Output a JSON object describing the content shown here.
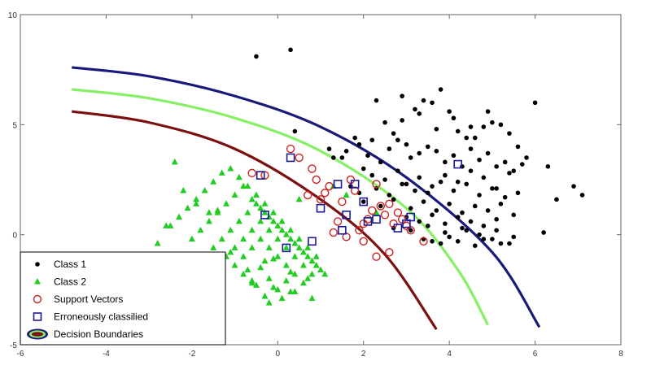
{
  "chart_data": {
    "type": "scatter",
    "title": "",
    "xlabel": "",
    "ylabel": "",
    "xlim": [
      -6,
      8
    ],
    "ylim": [
      -5,
      10
    ],
    "xticks": [
      -6,
      -4,
      -2,
      0,
      2,
      4,
      6,
      8
    ],
    "yticks": [
      -5,
      0,
      5,
      10
    ],
    "grid": false,
    "legend_position": "bottom-left",
    "legend": [
      {
        "label": "Class 1",
        "marker": "dot",
        "color": "#000000"
      },
      {
        "label": "Class 2",
        "marker": "triangle",
        "color": "#22cc22"
      },
      {
        "label": "Support Vectors",
        "marker": "circle-open",
        "color": "#cc2222"
      },
      {
        "label": "Erroneously classilied",
        "marker": "square-open",
        "color": "#1a1a99"
      },
      {
        "label": "Decision Boundaries",
        "marker": "ellipse",
        "color": "#1a1a7a"
      }
    ],
    "boundaries": [
      {
        "color": "#1a1a7a",
        "points": [
          [
            -4.8,
            7.6
          ],
          [
            -3,
            7.2
          ],
          [
            -1,
            6.3
          ],
          [
            1,
            4.9
          ],
          [
            3,
            2.6
          ],
          [
            5,
            -0.8
          ],
          [
            6.1,
            -4.2
          ]
        ]
      },
      {
        "color": "#88ee66",
        "points": [
          [
            -4.8,
            6.6
          ],
          [
            -3,
            6.2
          ],
          [
            -1,
            5.3
          ],
          [
            1,
            3.8
          ],
          [
            3,
            1.2
          ],
          [
            4.2,
            -1.6
          ],
          [
            4.9,
            -4.1
          ]
        ]
      },
      {
        "color": "#7a1010",
        "points": [
          [
            -4.8,
            5.6
          ],
          [
            -3,
            5.1
          ],
          [
            -1,
            3.9
          ],
          [
            1,
            1.6
          ],
          [
            2.5,
            -0.9
          ],
          [
            3.7,
            -4.3
          ]
        ]
      }
    ],
    "series": [
      {
        "name": "Class 1",
        "marker": "dot",
        "color": "#000000",
        "x": [
          -0.5,
          0.3,
          0.4,
          1.2,
          1.5,
          1.9,
          2.2,
          2.3,
          2.5,
          2.7,
          2.9,
          3.0,
          3.2,
          3.4,
          3.6,
          3.8,
          4.0,
          4.2,
          4.4,
          4.6,
          4.8,
          5.0,
          5.2,
          5.4,
          5.6,
          5.8,
          6.0,
          6.3,
          6.5,
          6.9,
          7.1,
          1.3,
          1.6,
          1.8,
          2.0,
          2.1,
          2.4,
          2.6,
          2.8,
          3.1,
          3.3,
          3.5,
          3.7,
          3.9,
          4.1,
          4.3,
          4.5,
          4.7,
          4.9,
          5.1,
          5.3,
          5.5,
          5.7,
          2.2,
          2.5,
          2.8,
          3.0,
          3.3,
          3.6,
          3.9,
          4.2,
          4.5,
          4.8,
          5.1,
          5.4,
          1.7,
          1.9,
          2.3,
          2.6,
          2.9,
          3.2,
          3.5,
          3.8,
          4.1,
          4.4,
          4.7,
          5.0,
          5.3,
          5.6,
          2.0,
          2.4,
          2.7,
          3.1,
          3.4,
          3.7,
          4.0,
          4.3,
          4.6,
          4.9,
          5.2,
          5.5,
          3.0,
          3.3,
          3.6,
          3.9,
          4.2,
          4.5,
          4.8,
          5.1,
          2.7,
          3.1,
          3.5,
          3.9,
          4.3,
          4.7,
          5.1,
          5.5,
          3.4,
          3.8,
          4.2,
          4.6,
          5.0,
          5.4,
          2.9,
          3.3,
          3.7,
          4.1,
          4.5,
          4.9,
          6.2,
          3.6,
          4.0,
          4.4,
          4.8,
          5.2
        ],
        "y": [
          8.1,
          8.4,
          4.7,
          3.9,
          3.5,
          4.1,
          4.3,
          6.1,
          5.1,
          4.6,
          6.3,
          4.1,
          5.7,
          6.1,
          6.0,
          6.6,
          5.6,
          4.7,
          4.4,
          4.4,
          4.9,
          5.1,
          5.0,
          4.6,
          4.0,
          3.5,
          6.0,
          3.1,
          1.6,
          2.2,
          1.8,
          3.5,
          3.8,
          4.4,
          3.0,
          3.6,
          3.3,
          3.9,
          4.3,
          3.5,
          3.7,
          4.0,
          3.8,
          3.3,
          3.6,
          3.1,
          3.9,
          3.4,
          3.7,
          3.1,
          3.3,
          2.9,
          3.2,
          2.7,
          2.5,
          2.9,
          2.3,
          2.6,
          2.2,
          2.7,
          2.4,
          2.9,
          2.6,
          2.1,
          2.8,
          2.2,
          1.9,
          2.1,
          1.8,
          2.3,
          2.0,
          1.9,
          2.4,
          2.0,
          2.3,
          1.8,
          2.1,
          1.7,
          1.9,
          1.5,
          1.3,
          1.6,
          1.2,
          1.5,
          1.1,
          1.4,
          1.0,
          1.3,
          1.1,
          1.4,
          0.9,
          0.8,
          0.6,
          0.9,
          0.5,
          0.8,
          0.6,
          0.4,
          0.7,
          0.3,
          0.2,
          0.4,
          0.1,
          0.3,
          0.0,
          0.2,
          -0.1,
          -0.2,
          -0.4,
          -0.3,
          -0.5,
          -0.2,
          -0.4,
          5.2,
          5.5,
          4.8,
          5.3,
          4.9,
          5.6,
          0.1,
          -0.3,
          -0.1,
          0.2,
          -0.2,
          -0.4
        ]
      },
      {
        "name": "Class 2",
        "marker": "triangle",
        "color": "#22cc22",
        "x": [
          -2.5,
          -2.3,
          -2.1,
          -1.9,
          -1.7,
          -1.5,
          -1.3,
          -1.1,
          -0.9,
          -0.7,
          -0.5,
          -0.3,
          -0.1,
          0.1,
          0.3,
          0.5,
          0.7,
          0.9,
          -2.0,
          -1.8,
          -1.6,
          -1.4,
          -1.2,
          -1.0,
          -0.8,
          -0.6,
          -0.4,
          -0.2,
          0.0,
          0.2,
          0.4,
          0.6,
          0.8,
          1.0,
          -1.5,
          -1.3,
          -1.1,
          -0.9,
          -0.7,
          -0.5,
          -0.3,
          -0.1,
          0.1,
          0.3,
          0.5,
          0.7,
          0.9,
          1.1,
          -1.2,
          -1.0,
          -0.8,
          -0.6,
          -0.4,
          -0.2,
          0.0,
          0.2,
          0.4,
          0.6,
          0.8,
          -1.0,
          -0.8,
          -0.6,
          -0.4,
          -0.2,
          0.0,
          0.2,
          0.4,
          0.6,
          -0.8,
          -0.6,
          -0.4,
          -0.2,
          0.0,
          0.2,
          0.4,
          -0.5,
          -0.3,
          -0.1,
          0.1,
          0.3,
          -1.6,
          -1.9,
          -2.2,
          -2.4,
          -1.1,
          -0.7,
          -0.3,
          0.5,
          1.3,
          1.6,
          2.3,
          -2.6,
          -2.8,
          -1.4,
          -0.1,
          0.7,
          -0.6,
          -0.2,
          0.3,
          0.8
        ],
        "y": [
          0.4,
          0.8,
          1.2,
          1.6,
          2.0,
          2.4,
          2.8,
          3.0,
          2.6,
          2.2,
          1.8,
          1.4,
          1.0,
          0.6,
          0.2,
          -0.2,
          -0.6,
          -1.0,
          -0.2,
          0.2,
          0.6,
          1.0,
          1.4,
          1.8,
          2.2,
          1.6,
          1.2,
          0.8,
          0.4,
          0.0,
          -0.4,
          -0.8,
          -1.2,
          -1.6,
          -0.6,
          -0.2,
          0.2,
          0.6,
          1.0,
          1.4,
          1.0,
          0.6,
          0.2,
          -0.2,
          -0.6,
          -1.0,
          -1.4,
          -1.8,
          -1.0,
          -0.6,
          -0.2,
          0.2,
          0.6,
          0.2,
          -0.2,
          -0.6,
          -1.0,
          -1.4,
          -1.8,
          -1.4,
          -1.0,
          -0.6,
          -0.2,
          -0.6,
          -1.0,
          -1.4,
          -1.8,
          -2.2,
          -1.8,
          -2.2,
          -1.5,
          -2.0,
          -2.5,
          -2.1,
          -2.6,
          -2.3,
          -2.8,
          -2.4,
          -2.9,
          -2.6,
          1.0,
          1.4,
          2.0,
          3.3,
          -0.8,
          -1.6,
          -1.2,
          1.6,
          2.2,
          1.8,
          1.0,
          0.4,
          -0.4,
          1.1,
          -1.1,
          -2.0,
          -2.1,
          -3.1,
          -1.7,
          -2.9
        ]
      },
      {
        "name": "Support Vectors",
        "marker": "circle-open",
        "color": "#cc2222",
        "x": [
          -0.6,
          -0.3,
          0.3,
          0.5,
          0.7,
          0.8,
          0.9,
          1.0,
          1.1,
          1.2,
          1.4,
          1.5,
          1.7,
          1.8,
          1.9,
          2.0,
          2.1,
          2.2,
          2.3,
          2.4,
          2.5,
          2.6,
          2.7,
          2.8,
          2.9,
          3.0,
          3.1,
          3.4,
          1.3,
          1.6,
          2.0,
          2.3,
          2.6
        ],
        "y": [
          2.8,
          2.7,
          3.9,
          3.5,
          1.8,
          3.0,
          2.5,
          1.6,
          1.9,
          2.2,
          0.6,
          1.5,
          2.5,
          2.0,
          0.2,
          0.5,
          0.7,
          1.1,
          2.3,
          1.3,
          0.9,
          1.4,
          0.5,
          1.0,
          0.7,
          0.4,
          0.2,
          -0.3,
          0.1,
          -0.1,
          -0.3,
          -1.0,
          -0.8
        ]
      },
      {
        "name": "Erroneously classilied",
        "marker": "square-open",
        "color": "#1a1a99",
        "x": [
          -0.4,
          -0.3,
          0.2,
          0.3,
          0.8,
          1.0,
          1.4,
          1.5,
          1.6,
          1.8,
          2.0,
          2.1,
          2.3,
          2.8,
          3.0,
          3.1,
          4.2
        ],
        "y": [
          2.7,
          0.9,
          -0.6,
          3.5,
          -0.3,
          1.2,
          2.3,
          0.2,
          0.9,
          2.3,
          1.5,
          0.6,
          0.7,
          0.3,
          0.5,
          0.8,
          3.2
        ]
      }
    ]
  }
}
